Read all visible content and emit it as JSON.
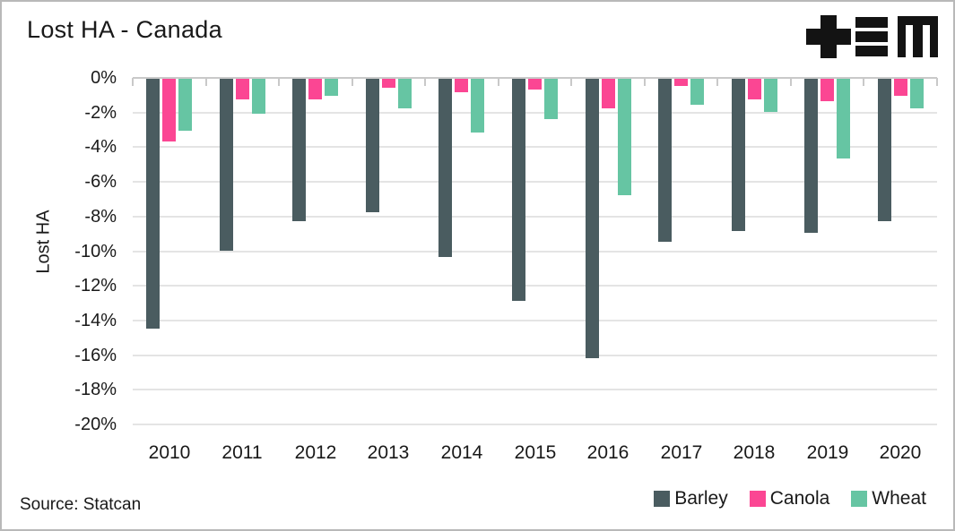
{
  "branding": {
    "logo_mark": "+≡M"
  },
  "source_note": "Source: Statcan",
  "chart_data": {
    "type": "bar",
    "title": "Lost HA - Canada",
    "xlabel": "",
    "ylabel": "Lost HA",
    "ylim": [
      -20,
      0
    ],
    "ytick_step": 2,
    "ytick_labels": [
      "0%",
      "-2%",
      "-4%",
      "-6%",
      "-8%",
      "-10%",
      "-12%",
      "-14%",
      "-16%",
      "-18%",
      "-20%"
    ],
    "grid": true,
    "legend_position": "bottom-right",
    "categories": [
      "2010",
      "2011",
      "2012",
      "2013",
      "2014",
      "2015",
      "2016",
      "2017",
      "2018",
      "2019",
      "2020"
    ],
    "series": [
      {
        "name": "Barley",
        "color": "#4a5c60",
        "values": [
          -14.4,
          -9.9,
          -8.2,
          -7.7,
          -10.3,
          -12.8,
          -16.1,
          -9.4,
          -8.8,
          -8.9,
          -8.2
        ]
      },
      {
        "name": "Canola",
        "color": "#fb4693",
        "values": [
          -3.6,
          -1.2,
          -1.2,
          -0.5,
          -0.8,
          -0.6,
          -1.7,
          -0.4,
          -1.2,
          -1.3,
          -1.0
        ]
      },
      {
        "name": "Wheat",
        "color": "#66c5a3",
        "values": [
          -3.0,
          -2.0,
          -1.0,
          -1.7,
          -3.1,
          -2.3,
          -6.7,
          -1.5,
          -1.9,
          -4.6,
          -1.7
        ]
      }
    ],
    "colors": {
      "gridline": "#e4e4e4",
      "zero_line": "#c9c9c9",
      "text": "#191919",
      "logo": "#131313"
    }
  }
}
